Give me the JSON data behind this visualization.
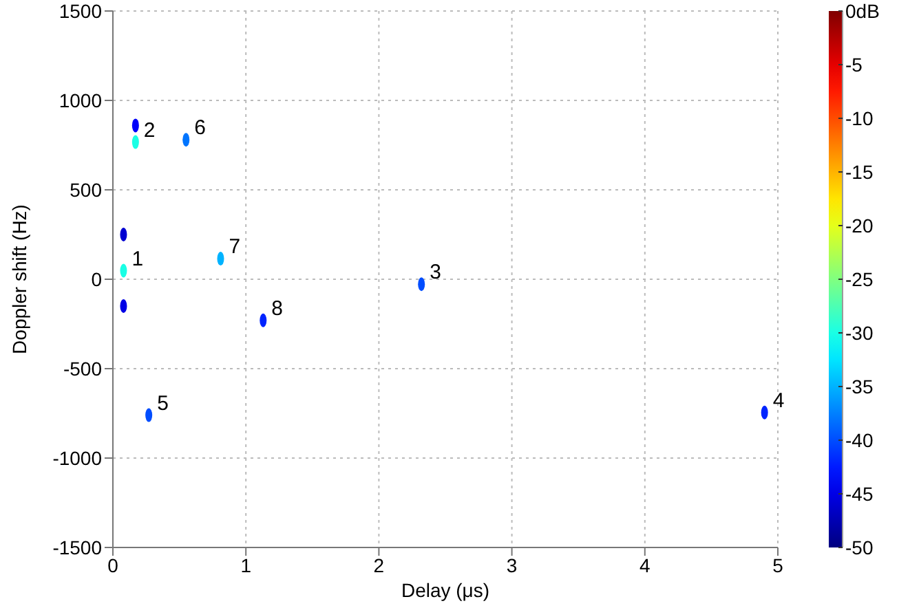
{
  "chart_data": {
    "type": "scatter",
    "xlabel": "Delay (μs)",
    "ylabel": "Doppler shift (Hz)",
    "clabel": "dB",
    "x": [
      0.08,
      0.08,
      0.08,
      0.17,
      0.17,
      0.55,
      0.81,
      1.13,
      2.32,
      0.27,
      4.9
    ],
    "values": [
      48,
      250,
      -150,
      767,
      860,
      780,
      115,
      -230,
      -28,
      -760,
      -745
    ],
    "cvalues": [
      -30,
      -46,
      -45,
      -30,
      -44,
      -38,
      -35,
      -42,
      -40,
      -40,
      -42
    ],
    "annotations": [
      {
        "text": "1",
        "x": 0.08,
        "y": 48
      },
      {
        "text": "2",
        "x": 0.17,
        "y": 767
      },
      {
        "text": "3",
        "x": 2.32,
        "y": -28
      },
      {
        "text": "4",
        "x": 4.9,
        "y": -745
      },
      {
        "text": "5",
        "x": 0.27,
        "y": -760
      },
      {
        "text": "6",
        "x": 0.55,
        "y": 780
      },
      {
        "text": "7",
        "x": 0.81,
        "y": 115
      },
      {
        "text": "8",
        "x": 1.13,
        "y": -230
      }
    ],
    "xlim": [
      0,
      5
    ],
    "xticks": [
      0,
      1,
      2,
      3,
      4,
      5
    ],
    "ylim": [
      -1500,
      1500
    ],
    "yticks": [
      -1500,
      -1000,
      -500,
      0,
      500,
      1000,
      1500
    ],
    "clim": [
      -50,
      0
    ],
    "cticks": [
      {
        "value": 0,
        "label": "0"
      },
      -5,
      -10,
      -15,
      -20,
      -25,
      -30,
      -35,
      -40,
      -45,
      -50
    ],
    "grid": true,
    "marker": "circle"
  }
}
